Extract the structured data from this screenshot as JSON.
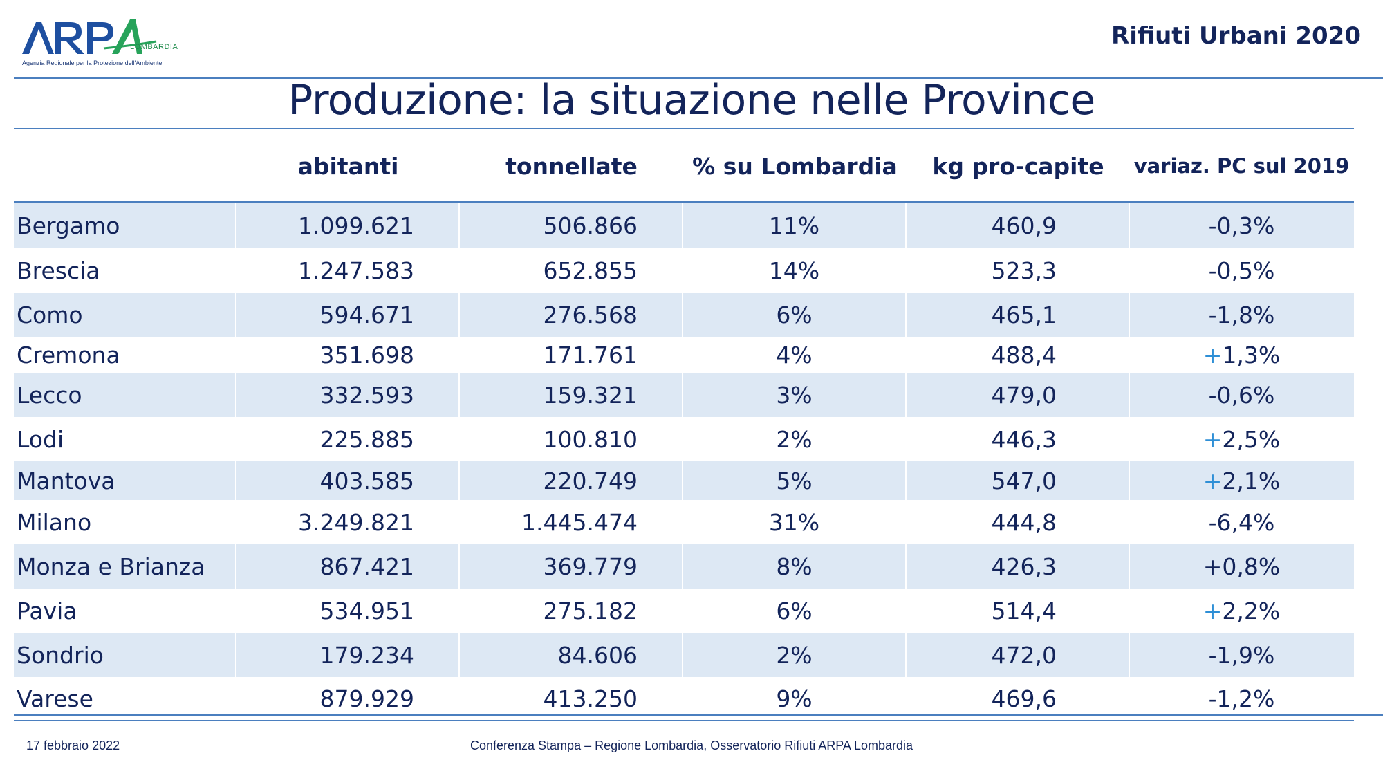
{
  "header": {
    "logo_text": "ARPA",
    "logo_region": "LOMBARDIA",
    "logo_tagline": "Agenzia Regionale per la Protezione dell'Ambiente",
    "report_title": "Rifiuti Urbani 2020"
  },
  "page": {
    "title": "Produzione: la situazione nelle Province"
  },
  "table": {
    "headers": {
      "abitanti": "abitanti",
      "tonnellate": "tonnellate",
      "percent": "% su Lombardia",
      "kg": "kg pro-capite",
      "variaz": "variaz. PC sul 2019"
    },
    "rows": [
      {
        "name": "Bergamo",
        "abitanti": "1.099.621",
        "tonnellate": "506.866",
        "percent": "11%",
        "kg": "460,9",
        "variaz_sign": "-",
        "variaz_value": "0,3%"
      },
      {
        "name": "Brescia",
        "abitanti": "1.247.583",
        "tonnellate": "652.855",
        "percent": "14%",
        "kg": "523,3",
        "variaz_sign": "-",
        "variaz_value": "0,5%"
      },
      {
        "name": "Como",
        "abitanti": "594.671",
        "tonnellate": "276.568",
        "percent": "6%",
        "kg": "465,1",
        "variaz_sign": "-",
        "variaz_value": "1,8%"
      },
      {
        "name": "Cremona",
        "abitanti": "351.698",
        "tonnellate": "171.761",
        "percent": "4%",
        "kg": "488,4",
        "variaz_sign": "+",
        "variaz_value": "1,3%"
      },
      {
        "name": "Lecco",
        "abitanti": "332.593",
        "tonnellate": "159.321",
        "percent": "3%",
        "kg": "479,0",
        "variaz_sign": "-",
        "variaz_value": "0,6%"
      },
      {
        "name": "Lodi",
        "abitanti": "225.885",
        "tonnellate": "100.810",
        "percent": "2%",
        "kg": "446,3",
        "variaz_sign": "+",
        "variaz_value": "2,5%"
      },
      {
        "name": "Mantova",
        "abitanti": "403.585",
        "tonnellate": "220.749",
        "percent": "5%",
        "kg": "547,0",
        "variaz_sign": "+",
        "variaz_value": "2,1%"
      },
      {
        "name": "Milano",
        "abitanti": "3.249.821",
        "tonnellate": "1.445.474",
        "percent": "31%",
        "kg": "444,8",
        "variaz_sign": "-",
        "variaz_value": "6,4%"
      },
      {
        "name": "Monza e Brianza",
        "abitanti": "867.421",
        "tonnellate": "369.779",
        "percent": "8%",
        "kg": "426,3",
        "variaz_sign": "+",
        "variaz_value": "0,8%",
        "variaz_plain": true
      },
      {
        "name": "Pavia",
        "abitanti": "534.951",
        "tonnellate": "275.182",
        "percent": "6%",
        "kg": "514,4",
        "variaz_sign": "+",
        "variaz_value": "2,2%"
      },
      {
        "name": "Sondrio",
        "abitanti": "179.234",
        "tonnellate": "84.606",
        "percent": "2%",
        "kg": "472,0",
        "variaz_sign": "-",
        "variaz_value": "1,9%"
      },
      {
        "name": "Varese",
        "abitanti": "879.929",
        "tonnellate": "413.250",
        "percent": "9%",
        "kg": "469,6",
        "variaz_sign": "-",
        "variaz_value": "1,2%"
      }
    ]
  },
  "footer": {
    "date": "17 febbraio 2022",
    "conference": "Conferenza Stampa – Regione Lombardia, Osservatorio Rifiuti  ARPA Lombardia"
  },
  "colors": {
    "text": "#13245a",
    "accent_rule": "#4b7fbf",
    "row_shade": "#dde8f4",
    "plus_sign": "#2e8fd6",
    "logo_blue": "#1e4fa0",
    "logo_green": "#27a35a"
  }
}
